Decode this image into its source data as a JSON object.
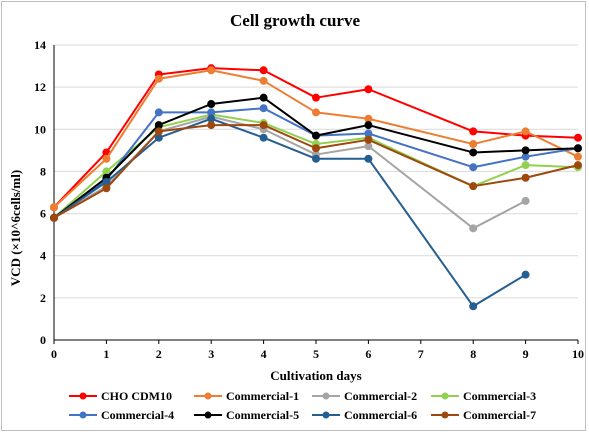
{
  "chart_data": {
    "type": "line",
    "title": "Cell growth curve",
    "xlabel": "Cultivation days",
    "ylabel": "VCD (×10^6cells/ml)",
    "x": [
      0,
      1,
      2,
      3,
      4,
      5,
      6,
      7,
      8,
      9,
      10
    ],
    "xlim": [
      0,
      10
    ],
    "ylim": [
      0,
      14
    ],
    "yticks": [
      0,
      2,
      4,
      6,
      8,
      10,
      12,
      14
    ],
    "grid": true,
    "legend_placement": "bottom",
    "series": [
      {
        "name": "CHO CDM10",
        "color": "#ff0000",
        "points": [
          [
            0,
            6.3
          ],
          [
            1,
            8.9
          ],
          [
            2,
            12.6
          ],
          [
            3,
            12.9
          ],
          [
            4,
            12.8
          ],
          [
            5,
            11.5
          ],
          [
            6,
            11.9
          ],
          [
            8,
            9.9
          ],
          [
            9,
            9.7
          ],
          [
            10,
            9.6
          ]
        ]
      },
      {
        "name": "Commercial-1",
        "color": "#ed7d31",
        "points": [
          [
            0,
            6.3
          ],
          [
            1,
            8.6
          ],
          [
            2,
            12.4
          ],
          [
            3,
            12.8
          ],
          [
            4,
            12.3
          ],
          [
            5,
            10.8
          ],
          [
            6,
            10.5
          ],
          [
            8,
            9.3
          ],
          [
            9,
            9.9
          ],
          [
            10,
            8.7
          ]
        ]
      },
      {
        "name": "Commercial-2",
        "color": "#a5a5a5",
        "points": [
          [
            0,
            5.8
          ],
          [
            1,
            7.3
          ],
          [
            2,
            9.9
          ],
          [
            3,
            10.6
          ],
          [
            4,
            10.0
          ],
          [
            5,
            8.8
          ],
          [
            6,
            9.2
          ],
          [
            8,
            5.3
          ],
          [
            9,
            6.6
          ]
        ]
      },
      {
        "name": "Commercial-3",
        "color": "#92d050",
        "points": [
          [
            0,
            5.8
          ],
          [
            1,
            8.0
          ],
          [
            2,
            10.1
          ],
          [
            3,
            10.7
          ],
          [
            4,
            10.3
          ],
          [
            5,
            9.3
          ],
          [
            6,
            9.6
          ],
          [
            8,
            7.3
          ],
          [
            9,
            8.3
          ],
          [
            10,
            8.2
          ]
        ]
      },
      {
        "name": "Commercial-4",
        "color": "#4472c4",
        "points": [
          [
            0,
            5.8
          ],
          [
            1,
            7.6
          ],
          [
            2,
            10.8
          ],
          [
            3,
            10.8
          ],
          [
            4,
            11.0
          ],
          [
            5,
            9.7
          ],
          [
            6,
            9.8
          ],
          [
            8,
            8.2
          ],
          [
            9,
            8.7
          ],
          [
            10,
            9.1
          ]
        ]
      },
      {
        "name": "Commercial-5",
        "color": "#000000",
        "points": [
          [
            0,
            5.8
          ],
          [
            1,
            7.7
          ],
          [
            2,
            10.2
          ],
          [
            3,
            11.2
          ],
          [
            4,
            11.5
          ],
          [
            5,
            9.7
          ],
          [
            6,
            10.2
          ],
          [
            8,
            8.9
          ],
          [
            9,
            9.0
          ],
          [
            10,
            9.1
          ]
        ]
      },
      {
        "name": "Commercial-6",
        "color": "#255e91",
        "points": [
          [
            0,
            5.8
          ],
          [
            1,
            7.5
          ],
          [
            2,
            9.6
          ],
          [
            3,
            10.5
          ],
          [
            4,
            9.6
          ],
          [
            5,
            8.6
          ],
          [
            6,
            8.6
          ],
          [
            8,
            1.6
          ],
          [
            9,
            3.1
          ]
        ]
      },
      {
        "name": "Commercial-7",
        "color": "#9e480e",
        "points": [
          [
            0,
            5.8
          ],
          [
            1,
            7.2
          ],
          [
            2,
            9.9
          ],
          [
            3,
            10.2
          ],
          [
            4,
            10.2
          ],
          [
            5,
            9.1
          ],
          [
            6,
            9.5
          ],
          [
            8,
            7.3
          ],
          [
            9,
            7.7
          ],
          [
            10,
            8.3
          ]
        ]
      }
    ]
  }
}
